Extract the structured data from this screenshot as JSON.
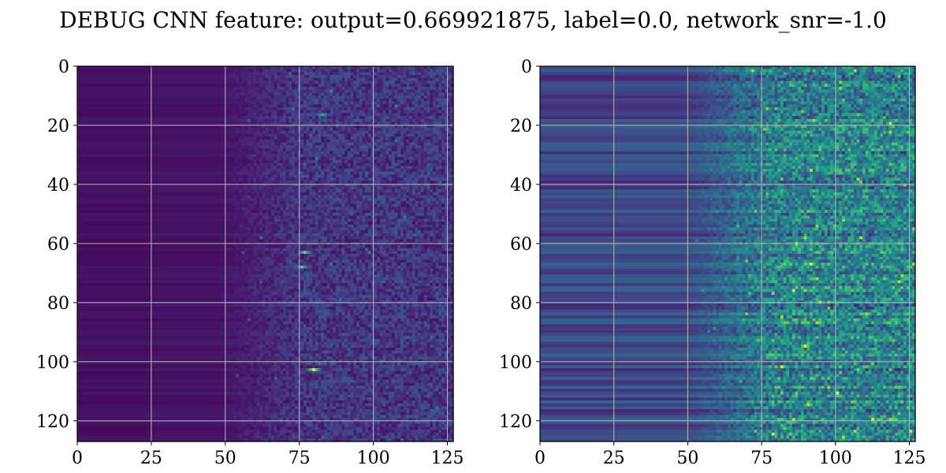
{
  "chart_data": {
    "type": "heatmap",
    "title": "DEBUG CNN feature: output=0.669921875, label=0.0, network_snr=-1.0",
    "colormap": "viridis",
    "grid": true,
    "panels": [
      {
        "name": "",
        "xlim": [
          0,
          127
        ],
        "ylim": [
          127,
          0
        ],
        "x_ticks": [
          0,
          25,
          50,
          75,
          100,
          125
        ],
        "y_ticks": [
          0,
          20,
          40,
          60,
          80,
          100,
          120
        ],
        "x_tick_labels": [
          "0",
          "25",
          "50",
          "75",
          "100",
          "125"
        ],
        "y_tick_labels": [
          "0",
          "20",
          "40",
          "60",
          "80",
          "100",
          "120"
        ],
        "background_level": 0.05,
        "noise_onset_column": 48,
        "hotspots": [
          {
            "row": 63,
            "col": 77,
            "value": 0.8
          },
          {
            "row": 68,
            "col": 76,
            "value": 0.75
          },
          {
            "row": 103,
            "col": 80,
            "value": 1.0
          },
          {
            "row": 16,
            "col": 83,
            "value": 0.6
          }
        ]
      },
      {
        "name": "",
        "xlim": [
          0,
          127
        ],
        "ylim": [
          127,
          0
        ],
        "x_ticks": [
          0,
          25,
          50,
          75,
          100,
          125
        ],
        "y_ticks": [
          0,
          20,
          40,
          60,
          80,
          100,
          120
        ],
        "x_tick_labels": [
          "0",
          "25",
          "50",
          "75",
          "100",
          "125"
        ],
        "y_tick_labels": [
          "0",
          "20",
          "40",
          "60",
          "80",
          "100",
          "120"
        ],
        "background_level": 0.22,
        "noise_onset_column": 50,
        "hotspots": [
          {
            "row": 95,
            "col": 90,
            "value": 1.0
          },
          {
            "row": 115,
            "col": 91,
            "value": 0.9
          },
          {
            "row": 76,
            "col": 90,
            "value": 0.85
          },
          {
            "row": 103,
            "col": 108,
            "value": 0.8
          },
          {
            "row": 15,
            "col": 89,
            "value": 0.75
          }
        ]
      }
    ]
  }
}
